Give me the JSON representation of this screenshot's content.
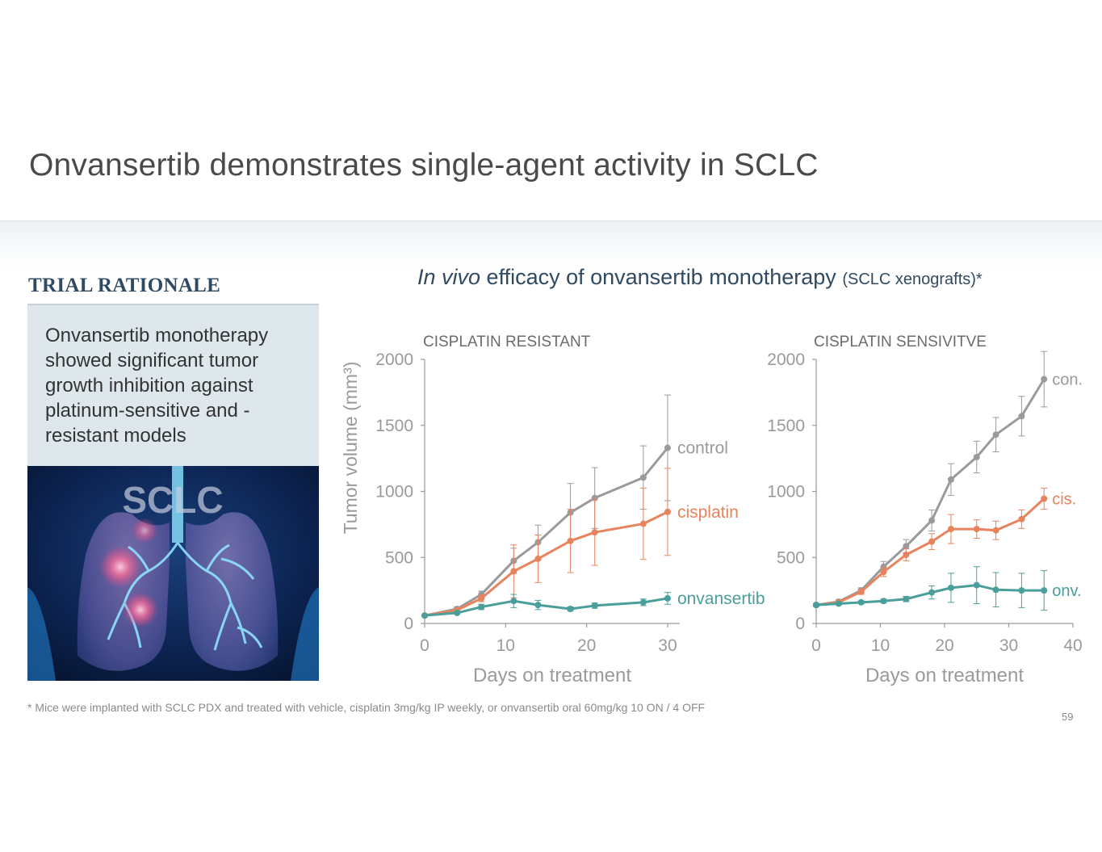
{
  "slide": {
    "title": "Onvansertib demonstrates single-agent activity in SCLC",
    "page_number": "59"
  },
  "rationale": {
    "heading": "TRIAL RATIONALE",
    "text": "Onvansertib monotherapy showed significant tumor growth inhibition against platinum-sensitive and -resistant models",
    "image_label": "SCLC"
  },
  "chart_heading": {
    "italic": "In vivo",
    "main": " efficacy of onvansertib monotherapy ",
    "small": "(SCLC xenografts)*"
  },
  "footnote": "*  Mice were implanted with SCLC PDX and treated with vehicle, cisplatin 3mg/kg IP weekly, or onvansertib oral 60mg/kg 10 ON / 4 OFF",
  "colors": {
    "control": "#9a9a9a",
    "cisplatin": "#e8835e",
    "onvansertib": "#4a9e9b",
    "axis": "#9a9a9a",
    "heading": "#2f4a62"
  },
  "chart_data": [
    {
      "type": "line",
      "title": "CISPLATIN RESISTANT",
      "xlabel": "Days on treatment",
      "ylabel": "Tumor volume (mm³)",
      "xlim": [
        0,
        31.5
      ],
      "ylim": [
        0,
        2000
      ],
      "xticks": [
        0,
        10,
        20,
        30
      ],
      "yticks": [
        0,
        500,
        1000,
        1500,
        2000
      ],
      "grid": false,
      "series": [
        {
          "name": "control",
          "label": "control",
          "color_key": "control",
          "x": [
            0,
            4,
            7,
            11,
            14,
            18,
            21,
            27,
            30
          ],
          "y": [
            60,
            110,
            220,
            475,
            615,
            840,
            950,
            1105,
            1330
          ],
          "err": [
            0,
            15,
            25,
            95,
            130,
            220,
            230,
            240,
            400
          ]
        },
        {
          "name": "cisplatin",
          "label": "cisplatin",
          "color_key": "cisplatin",
          "x": [
            0,
            4,
            7,
            11,
            14,
            18,
            21,
            27,
            30
          ],
          "y": [
            60,
            100,
            190,
            395,
            490,
            625,
            690,
            755,
            845
          ],
          "err": [
            0,
            15,
            25,
            200,
            180,
            240,
            250,
            270,
            330
          ]
        },
        {
          "name": "onvansertib",
          "label": "onvansertib",
          "color_key": "onvansertib",
          "x": [
            0,
            4,
            7,
            11,
            14,
            18,
            21,
            27,
            30
          ],
          "y": [
            60,
            80,
            125,
            170,
            140,
            110,
            135,
            160,
            190
          ],
          "err": [
            0,
            8,
            20,
            50,
            35,
            15,
            20,
            25,
            45
          ]
        }
      ]
    },
    {
      "type": "line",
      "title": "CISPLATIN SENSIVITVE",
      "xlabel": "Days on treatment",
      "ylabel": "",
      "xlim": [
        0,
        40
      ],
      "ylim": [
        0,
        2000
      ],
      "xticks": [
        0,
        10,
        20,
        30,
        40
      ],
      "yticks": [
        0,
        500,
        1000,
        1500,
        2000
      ],
      "grid": false,
      "series": [
        {
          "name": "control",
          "label": "con.",
          "color_key": "control",
          "x": [
            0,
            3.5,
            7,
            10.5,
            14,
            18,
            21,
            25,
            28,
            32,
            35.5
          ],
          "y": [
            140,
            165,
            250,
            430,
            585,
            780,
            1090,
            1260,
            1430,
            1570,
            1850
          ],
          "err": [
            10,
            15,
            20,
            40,
            50,
            80,
            120,
            120,
            130,
            150,
            210
          ]
        },
        {
          "name": "cisplatin",
          "label": "cis.",
          "color_key": "cisplatin",
          "x": [
            0,
            3.5,
            7,
            10.5,
            14,
            18,
            21,
            25,
            28,
            32,
            35.5
          ],
          "y": [
            140,
            160,
            240,
            390,
            520,
            620,
            715,
            715,
            705,
            790,
            945
          ],
          "err": [
            10,
            15,
            20,
            35,
            45,
            60,
            110,
            70,
            70,
            70,
            80
          ]
        },
        {
          "name": "onvansertib",
          "label": "onv.",
          "color_key": "onvansertib",
          "x": [
            0,
            3.5,
            7,
            10.5,
            14,
            18,
            21,
            25,
            28,
            32,
            35.5
          ],
          "y": [
            140,
            150,
            160,
            170,
            185,
            235,
            270,
            290,
            255,
            250,
            250
          ],
          "err": [
            10,
            10,
            10,
            15,
            20,
            50,
            110,
            140,
            130,
            130,
            150
          ]
        }
      ]
    }
  ]
}
